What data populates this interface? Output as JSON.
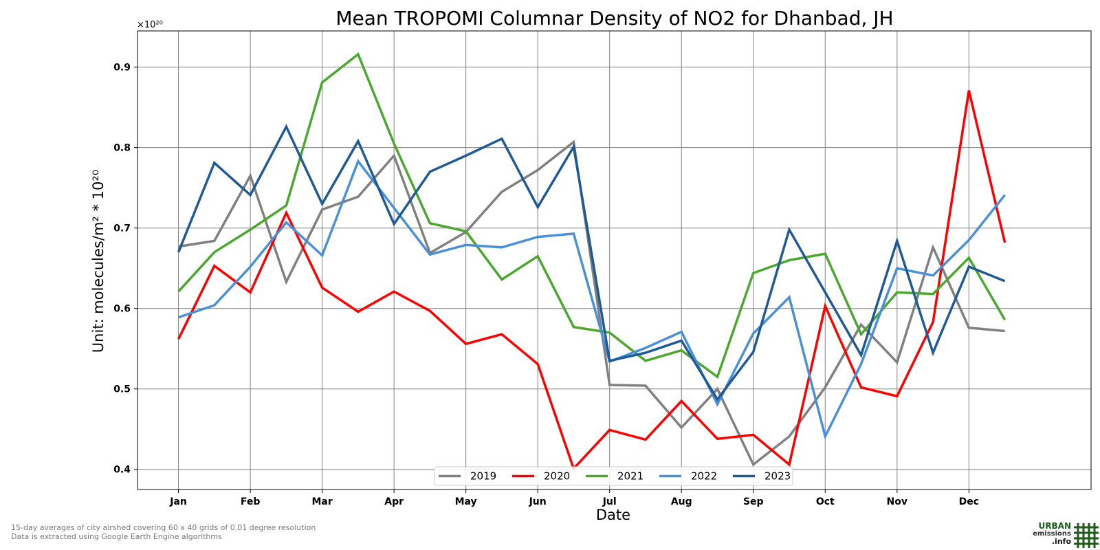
{
  "chart_data": {
    "type": "line",
    "title": "Mean TROPOMI Columnar Density of NO2 for Dhanbad, JH",
    "xlabel": "Date",
    "ylabel": "Unit: molecules/m² * 10²⁰",
    "y_scale_label": "×10²⁰",
    "ylim": [
      0.375,
      0.945
    ],
    "yticks": [
      0.4,
      0.5,
      0.6,
      0.7,
      0.8,
      0.9
    ],
    "ytick_labels": [
      "0.4",
      "0.5",
      "0.6",
      "0.7",
      "0.8",
      "0.9"
    ],
    "xticks": [
      "Jan",
      "Feb",
      "Mar",
      "Apr",
      "May",
      "Jun",
      "Jul",
      "Aug",
      "Sep",
      "Oct",
      "Nov",
      "Dec"
    ],
    "x": [
      1,
      1.5,
      2,
      2.5,
      3,
      3.5,
      4,
      4.5,
      5,
      5.5,
      6,
      6.5,
      7,
      7.5,
      8,
      8.5,
      9,
      9.5,
      10,
      10.5,
      11,
      11.5,
      12,
      12.5
    ],
    "xlim": [
      0.43,
      13.7
    ],
    "grid": true,
    "legend_position": "bottom-center",
    "series": [
      {
        "name": "2019",
        "color": "#808080",
        "values": [
          0.677,
          0.684,
          0.765,
          0.633,
          0.723,
          0.739,
          0.79,
          0.669,
          0.695,
          0.745,
          0.772,
          0.807,
          0.505,
          0.504,
          0.452,
          0.5,
          0.406,
          0.441,
          0.502,
          0.58,
          0.533,
          0.676,
          0.576,
          0.572
        ]
      },
      {
        "name": "2020",
        "color": "#ff0000",
        "values": [
          0.562,
          0.653,
          0.62,
          0.719,
          0.626,
          0.596,
          0.621,
          0.597,
          0.556,
          0.568,
          0.531,
          0.401,
          0.449,
          0.437,
          0.485,
          0.438,
          0.443,
          0.406,
          0.603,
          0.502,
          0.491,
          0.583,
          0.871,
          0.682
        ]
      },
      {
        "name": "2021",
        "color": "#4ba82e",
        "values": [
          0.621,
          0.67,
          0.698,
          0.728,
          0.881,
          0.916,
          0.805,
          0.706,
          0.696,
          0.636,
          0.665,
          0.577,
          0.57,
          0.535,
          0.548,
          0.515,
          0.644,
          0.66,
          0.668,
          0.568,
          0.62,
          0.618,
          0.663,
          0.586
        ]
      },
      {
        "name": "2022",
        "color": "#4a90d9",
        "values": [
          0.589,
          0.604,
          0.652,
          0.707,
          0.666,
          0.783,
          0.725,
          0.667,
          0.679,
          0.676,
          0.689,
          0.693,
          0.534,
          0.551,
          0.571,
          0.481,
          0.569,
          0.614,
          0.441,
          0.531,
          0.65,
          0.641,
          0.685,
          0.741
        ]
      },
      {
        "name": "2023",
        "color": "#1f5a96",
        "values": [
          0.67,
          0.781,
          0.741,
          0.826,
          0.73,
          0.808,
          0.705,
          0.77,
          0.79,
          0.811,
          0.726,
          0.801,
          0.535,
          0.545,
          0.56,
          0.487,
          0.546,
          0.698,
          0.62,
          0.542,
          0.684,
          0.545,
          0.652,
          0.634
        ]
      }
    ]
  },
  "footnote": {
    "line1": "15-day averages of city airshed covering 60 x 40 grids of 0.01 degree resolution",
    "line2": "Data is extracted using Google Earth Engine algorithms"
  },
  "logo": {
    "urban": "URBAN",
    "emissions": "emissions",
    "info": ".info",
    "grid_color": "#1f5a1a"
  }
}
